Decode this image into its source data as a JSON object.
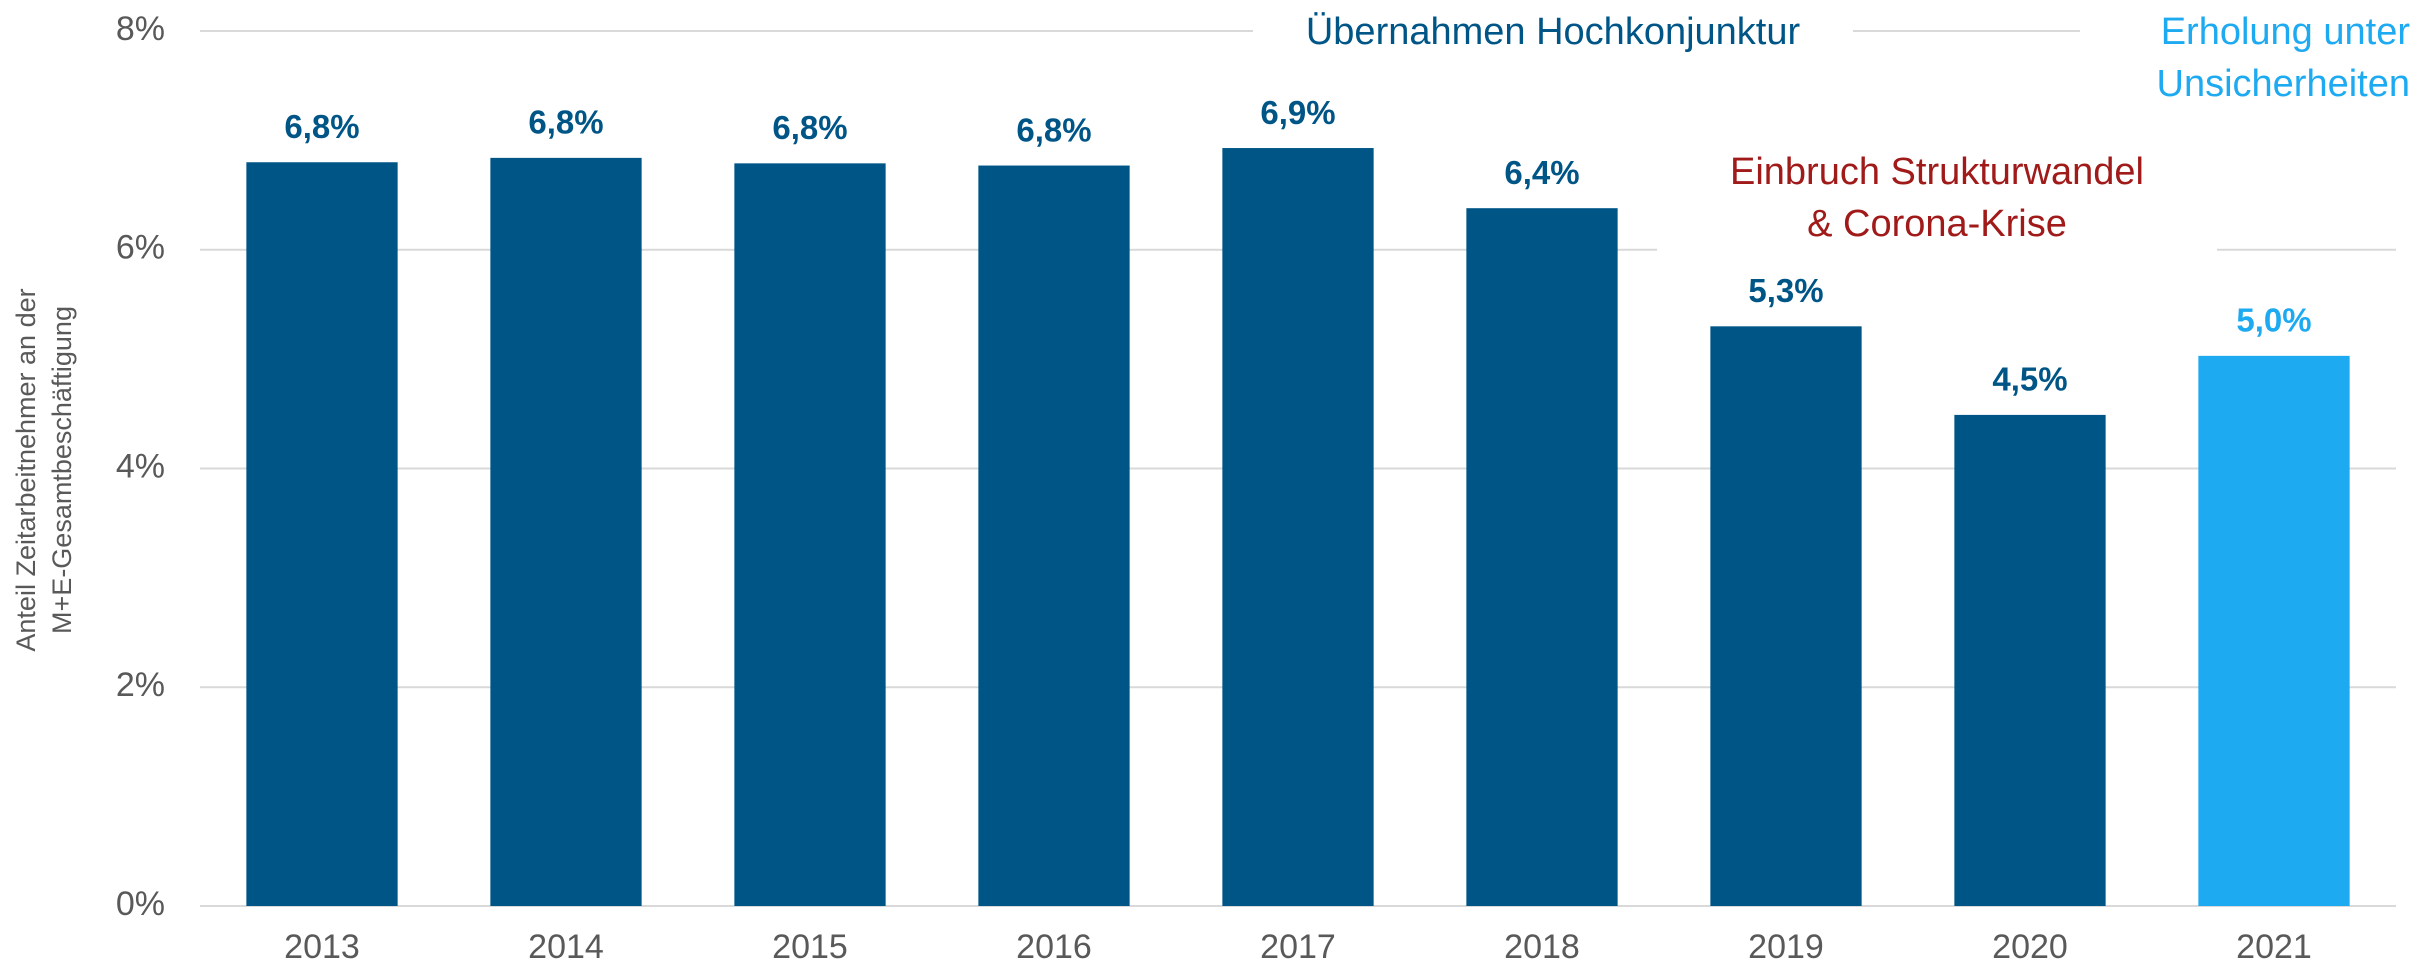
{
  "chart_data": {
    "type": "bar",
    "y_label": [
      "Anteil Zeitarbeitnehmer an der",
      "M+E-Gesamtbeschäftigung"
    ],
    "categories": [
      "2013",
      "2014",
      "2015",
      "2016",
      "2017",
      "2018",
      "2019",
      "2020",
      "2021"
    ],
    "values": [
      6.8,
      6.84,
      6.79,
      6.77,
      6.93,
      6.38,
      5.3,
      4.49,
      5.03
    ],
    "value_labels": [
      "6,8%",
      "6,8%",
      "6,8%",
      "6,8%",
      "6,9%",
      "6,4%",
      "5,3%",
      "4,5%",
      "5,0%"
    ],
    "colors": [
      "#005587",
      "#005587",
      "#005587",
      "#005587",
      "#005587",
      "#005587",
      "#005587",
      "#005587",
      "#1eaaf1"
    ],
    "ylim": [
      0,
      8
    ],
    "yticks": [
      {
        "value": 0,
        "label": "0%"
      },
      {
        "value": 2,
        "label": "2%"
      },
      {
        "value": 4,
        "label": "4%"
      },
      {
        "value": 6,
        "label": "6%"
      },
      {
        "value": 8,
        "label": "8%"
      }
    ],
    "grid": true,
    "annotations": [
      {
        "lines": [
          "Übernahmen Hochkonjunktur"
        ],
        "color": "#005587"
      },
      {
        "lines": [
          "Einbruch Strukturwandel",
          "& Corona-Krise"
        ],
        "color": "#a11a1a"
      },
      {
        "lines": [
          "Erholung unter",
          "Unsicherheiten"
        ],
        "color": "#1eaaf1"
      }
    ]
  }
}
